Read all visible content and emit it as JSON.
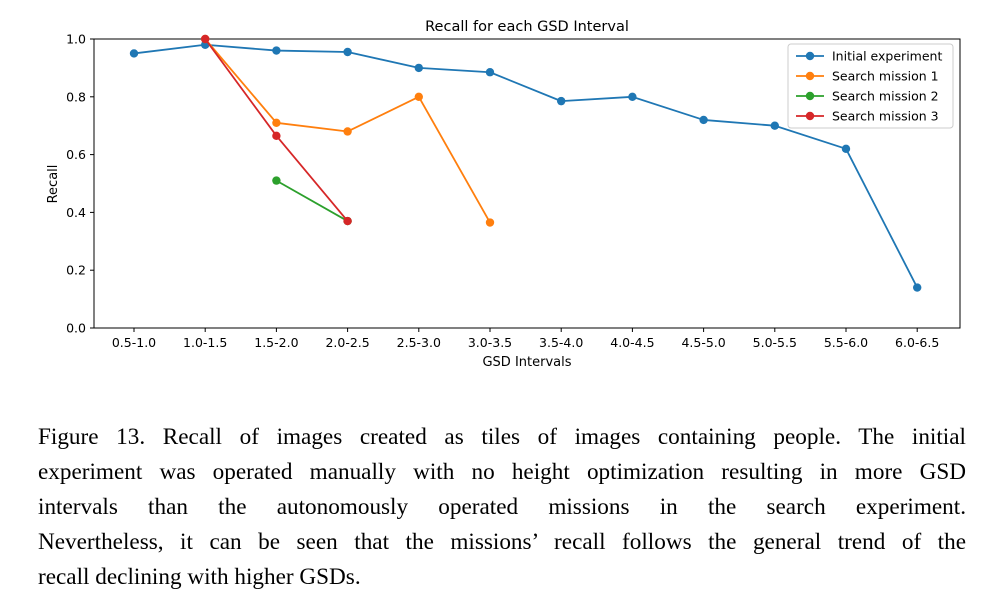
{
  "chart_data": {
    "type": "line",
    "title": "Recall for each GSD Interval",
    "xlabel": "GSD Intervals",
    "ylabel": "Recall",
    "ylim": [
      0.0,
      1.0
    ],
    "yticks": [
      "0.0",
      "0.2",
      "0.4",
      "0.6",
      "0.8",
      "1.0"
    ],
    "categories": [
      "0.5-1.0",
      "1.0-1.5",
      "1.5-2.0",
      "2.0-2.5",
      "2.5-3.0",
      "3.0-3.5",
      "3.5-4.0",
      "4.0-4.5",
      "4.5-5.0",
      "5.0-5.5",
      "5.5-6.0",
      "6.0-6.5"
    ],
    "grid": false,
    "legend_position": "top-right",
    "series": [
      {
        "name": "Initial experiment",
        "color": "#1f77b4",
        "values": [
          0.95,
          0.98,
          0.96,
          0.955,
          0.9,
          0.885,
          0.785,
          0.8,
          0.72,
          0.7,
          0.62,
          0.14
        ]
      },
      {
        "name": "Search mission 1",
        "color": "#ff7f0e",
        "values": [
          null,
          1.0,
          0.71,
          0.68,
          0.8,
          0.365,
          null,
          null,
          null,
          null,
          null,
          null
        ]
      },
      {
        "name": "Search mission 2",
        "color": "#2ca02c",
        "values": [
          null,
          null,
          0.51,
          0.37,
          null,
          null,
          null,
          null,
          null,
          null,
          null,
          null
        ]
      },
      {
        "name": "Search mission 3",
        "color": "#d62728",
        "values": [
          null,
          1.0,
          0.665,
          0.37,
          null,
          null,
          null,
          null,
          null,
          null,
          null,
          null
        ]
      }
    ]
  },
  "caption": {
    "lines": [
      "Figure 13. Recall of images created as tiles of images containing people. The initial",
      "experiment was operated manually with no height optimization resulting in more GSD",
      "intervals than the autonomously operated missions in the search experiment.",
      "Nevertheless, it can be seen that the missions’ recall follows the general trend of the",
      "recall declining with higher GSDs."
    ]
  }
}
